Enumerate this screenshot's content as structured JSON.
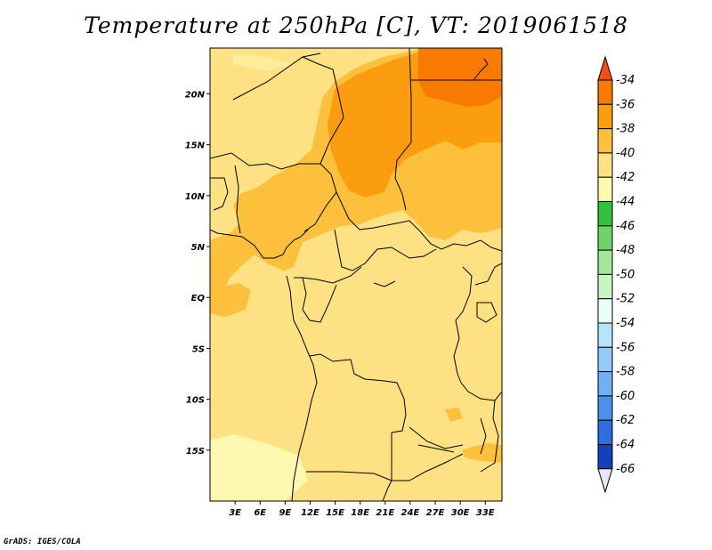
{
  "title": "Temperature at 250hPa [C], VT: 2019061518",
  "credit": "GrADS: IGES/COLA",
  "map": {
    "projection": "latlon",
    "lon_range": [
      0,
      35
    ],
    "lat_range": [
      -20,
      24.5
    ],
    "lat_ticks": [
      {
        "lat": 20,
        "label": "20N"
      },
      {
        "lat": 15,
        "label": "15N"
      },
      {
        "lat": 10,
        "label": "10N"
      },
      {
        "lat": 5,
        "label": "5N"
      },
      {
        "lat": 0,
        "label": "EQ"
      },
      {
        "lat": -5,
        "label": "5S"
      },
      {
        "lat": -10,
        "label": "10S"
      },
      {
        "lat": -15,
        "label": "15S"
      }
    ],
    "lon_ticks": [
      {
        "lon": 3,
        "label": "3E"
      },
      {
        "lon": 6,
        "label": "6E"
      },
      {
        "lon": 9,
        "label": "9E"
      },
      {
        "lon": 12,
        "label": "12E"
      },
      {
        "lon": 15,
        "label": "15E"
      },
      {
        "lon": 18,
        "label": "18E"
      },
      {
        "lon": 21,
        "label": "21E"
      },
      {
        "lon": 24,
        "label": "24E"
      },
      {
        "lon": 27,
        "label": "27E"
      },
      {
        "lon": 30,
        "label": "30E"
      },
      {
        "lon": 33,
        "label": "33E"
      }
    ]
  },
  "colorbar": {
    "labels": [
      "-34",
      "-36",
      "-38",
      "-40",
      "-42",
      "-44",
      "-46",
      "-48",
      "-50",
      "-52",
      "-54",
      "-56",
      "-58",
      "-60",
      "-62",
      "-64",
      "-66"
    ],
    "colors": [
      "#f05014",
      "#f97a00",
      "#fb9d0e",
      "#fdc03c",
      "#fee183",
      "#fff8b0",
      "#34c03c",
      "#6ed36a",
      "#a2e89a",
      "#c7f5c3",
      "#eafff8",
      "#b7e3fa",
      "#93caf7",
      "#6fb0f3",
      "#4a91ec",
      "#2d6ee3",
      "#1340bd",
      "#0a1870",
      "#e6e6f5"
    ]
  },
  "palette": {
    "minus_42_to_40": "#fee183",
    "minus_40_to_38": "#fdc03c",
    "minus_38_to_36": "#fb9d0e",
    "minus_36_to_34": "#f97a00",
    "above_minus_34": "#f05014",
    "minus_44_to_42": "#fff8b0"
  }
}
